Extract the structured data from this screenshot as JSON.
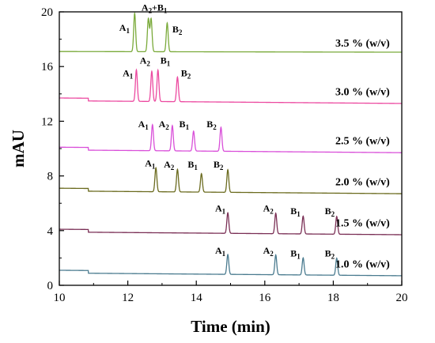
{
  "chart_data": {
    "type": "line",
    "xlabel": "Time (min)",
    "ylabel": "mAU",
    "xlim": [
      10,
      20
    ],
    "ylim": [
      0,
      20
    ],
    "xticks": [
      "10",
      "12",
      "14",
      "16",
      "18",
      "20"
    ],
    "yticks": [
      "0",
      "4",
      "8",
      "12",
      "16",
      "20"
    ],
    "grid": false,
    "series": [
      {
        "name": "1.0 % (w/v)",
        "color": "#4a7b8f",
        "baseline_start": 1.1,
        "baseline_end": 0.9,
        "step_time": 10.85,
        "step_height": -0.2,
        "peaks": [
          {
            "label": "A",
            "sub": "1",
            "time": 14.92,
            "height": 1.45
          },
          {
            "label": "A",
            "sub": "2",
            "time": 16.32,
            "height": 1.45
          },
          {
            "label": "B",
            "sub": "1",
            "time": 17.12,
            "height": 1.25
          },
          {
            "label": "B",
            "sub": "2",
            "time": 18.1,
            "height": 1.25
          }
        ]
      },
      {
        "name": "1.5 % (w/v)",
        "color": "#7a2f55",
        "baseline_start": 4.1,
        "baseline_end": 3.9,
        "step_time": 10.85,
        "step_height": -0.2,
        "peaks": [
          {
            "label": "A",
            "sub": "1",
            "time": 14.92,
            "height": 1.5
          },
          {
            "label": "A",
            "sub": "2",
            "time": 16.32,
            "height": 1.5
          },
          {
            "label": "B",
            "sub": "1",
            "time": 17.12,
            "height": 1.3
          },
          {
            "label": "B",
            "sub": "2",
            "time": 18.1,
            "height": 1.3
          }
        ]
      },
      {
        "name": "2.0 % (w/v)",
        "color": "#6b6b1f",
        "baseline_start": 7.1,
        "baseline_end": 6.9,
        "step_time": 10.85,
        "step_height": -0.2,
        "peaks": [
          {
            "label": "A",
            "sub": "1",
            "time": 12.82,
            "height": 1.75
          },
          {
            "label": "A",
            "sub": "2",
            "time": 13.45,
            "height": 1.65
          },
          {
            "label": "B",
            "sub": "1",
            "time": 14.15,
            "height": 1.35
          },
          {
            "label": "B",
            "sub": "2",
            "time": 14.92,
            "height": 1.65
          }
        ]
      },
      {
        "name": "2.5 % (w/v)",
        "color": "#d94fd9",
        "baseline_start": 10.1,
        "baseline_end": 9.9,
        "step_time": 10.85,
        "step_height": -0.2,
        "peaks": [
          {
            "label": "A",
            "sub": "1",
            "time": 12.72,
            "height": 1.9
          },
          {
            "label": "A",
            "sub": "2",
            "time": 13.3,
            "height": 1.85
          },
          {
            "label": "B",
            "sub": "1",
            "time": 13.92,
            "height": 1.45
          },
          {
            "label": "B",
            "sub": "2",
            "time": 14.72,
            "height": 1.75
          }
        ]
      },
      {
        "name": "3.0 % (w/v)",
        "color": "#ec4aa0",
        "baseline_start": 13.7,
        "baseline_end": 13.5,
        "step_time": 10.85,
        "step_height": -0.2,
        "peaks": [
          {
            "label": "A",
            "sub": "1",
            "time": 12.25,
            "height": 2.3
          },
          {
            "label": "A",
            "sub": "2",
            "time": 12.7,
            "height": 2.2
          },
          {
            "label": "B",
            "sub": "1",
            "time": 12.88,
            "height": 2.3
          },
          {
            "label": "B",
            "sub": "2",
            "time": 13.45,
            "height": 1.8
          }
        ]
      },
      {
        "name": "3.5 % (w/v)",
        "color": "#7aaa3a",
        "baseline_start": 17.1,
        "baseline_end": 17.05,
        "step_time": null,
        "step_height": 0,
        "peaks": [
          {
            "label": "A",
            "sub": "1",
            "time": 12.2,
            "height": 2.8
          },
          {
            "label": "A",
            "sub": "2",
            "time": 12.6,
            "height": 2.4
          },
          {
            "label": "B",
            "sub": "1",
            "time": 12.68,
            "height": 2.4
          },
          {
            "label": "B",
            "sub": "2",
            "time": 13.15,
            "height": 2.1
          }
        ]
      }
    ],
    "annotations": [
      {
        "series": 0,
        "text": "A",
        "sub": "1",
        "x": 14.55,
        "y": 2.3
      },
      {
        "series": 0,
        "text": "A",
        "sub": "2",
        "x": 15.95,
        "y": 2.3
      },
      {
        "series": 0,
        "text": "B",
        "sub": "1",
        "x": 16.75,
        "y": 2.1
      },
      {
        "series": 0,
        "text": "B",
        "sub": "2",
        "x": 17.75,
        "y": 2.1
      },
      {
        "series": 1,
        "text": "A",
        "sub": "1",
        "x": 14.55,
        "y": 5.4
      },
      {
        "series": 1,
        "text": "A",
        "sub": "2",
        "x": 15.95,
        "y": 5.4
      },
      {
        "series": 1,
        "text": "B",
        "sub": "1",
        "x": 16.75,
        "y": 5.2
      },
      {
        "series": 1,
        "text": "B",
        "sub": "2",
        "x": 17.75,
        "y": 5.2
      },
      {
        "series": 2,
        "text": "A",
        "sub": "1",
        "x": 12.5,
        "y": 8.7
      },
      {
        "series": 2,
        "text": "A",
        "sub": "2",
        "x": 13.05,
        "y": 8.6
      },
      {
        "series": 2,
        "text": "B",
        "sub": "1",
        "x": 13.75,
        "y": 8.6
      },
      {
        "series": 2,
        "text": "B",
        "sub": "2",
        "x": 14.5,
        "y": 8.6
      },
      {
        "series": 3,
        "text": "A",
        "sub": "1",
        "x": 12.3,
        "y": 11.55
      },
      {
        "series": 3,
        "text": "A",
        "sub": "2",
        "x": 12.9,
        "y": 11.55
      },
      {
        "series": 3,
        "text": "B",
        "sub": "1",
        "x": 13.5,
        "y": 11.55
      },
      {
        "series": 3,
        "text": "B",
        "sub": "2",
        "x": 14.3,
        "y": 11.55
      },
      {
        "series": 4,
        "text": "A",
        "sub": "1",
        "x": 11.85,
        "y": 15.3
      },
      {
        "series": 4,
        "text": "A",
        "sub": "2",
        "x": 12.35,
        "y": 16.2
      },
      {
        "series": 4,
        "text": "B",
        "sub": "1",
        "x": 12.95,
        "y": 16.2
      },
      {
        "series": 4,
        "text": "B",
        "sub": "2",
        "x": 13.55,
        "y": 15.3
      },
      {
        "series": 5,
        "text": "A",
        "sub": "1",
        "x": 11.75,
        "y": 18.6
      },
      {
        "series": 5,
        "text": "A",
        "sub": "2",
        "x": 12.4,
        "y": 20.1,
        "suffix": "+B",
        "suffix_sub": "1"
      },
      {
        "series": 5,
        "text": "B",
        "sub": "2",
        "x": 13.3,
        "y": 18.5
      }
    ],
    "concentration_label_x": 19.65
  }
}
